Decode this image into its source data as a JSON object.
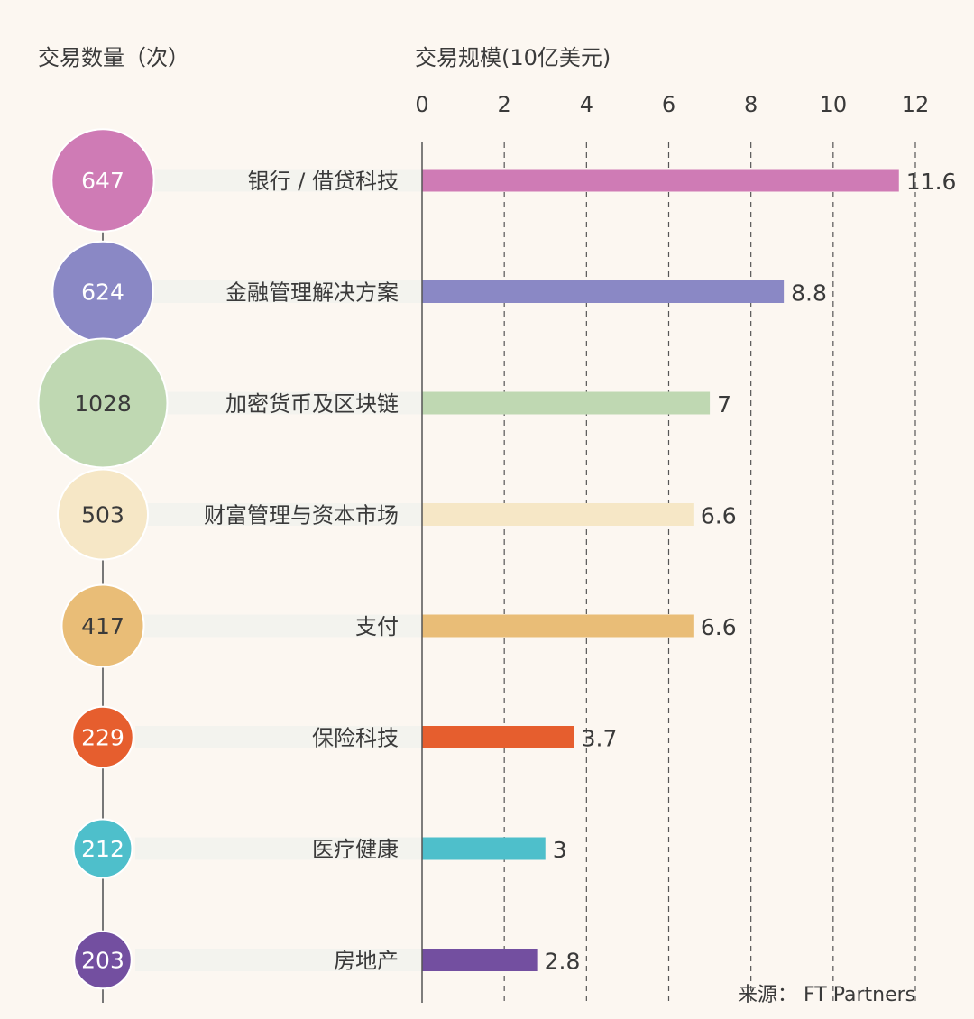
{
  "header": {
    "count_title": "交易数量（次）",
    "volume_title": "交易规模(10亿美元)"
  },
  "source": "来源： FT Partners",
  "chart_data": {
    "type": "bar",
    "orientation": "horizontal",
    "xlim": [
      0,
      12
    ],
    "xticks": [
      "0",
      "2",
      "4",
      "6",
      "8",
      "10",
      "12"
    ],
    "grid": "dashed vertical",
    "categories": [
      "银行 / 借贷科技",
      "金融管理解决方案",
      "加密货币及区块链",
      "财富管理与资本市场",
      "支付",
      "保险科技",
      "医疗健康",
      "房地产"
    ],
    "values": [
      11.6,
      8.8,
      7,
      6.6,
      6.6,
      3.7,
      3,
      2.8
    ],
    "value_labels": [
      "11.6",
      "8.8",
      "7",
      "6.6",
      "6.6",
      "3.7",
      "3",
      "2.8"
    ],
    "deal_counts": [
      647,
      624,
      1028,
      503,
      417,
      229,
      212,
      203
    ],
    "colors": [
      "#cf7bb5",
      "#8a88c5",
      "#bfd8b2",
      "#f6e7c6",
      "#e9bd77",
      "#e65e2e",
      "#4ebfcb",
      "#734fa0"
    ],
    "count_text_colors": [
      "#ffffff",
      "#ffffff",
      "#3a3a3a",
      "#3a3a3a",
      "#3a3a3a",
      "#ffffff",
      "#ffffff",
      "#ffffff"
    ]
  }
}
